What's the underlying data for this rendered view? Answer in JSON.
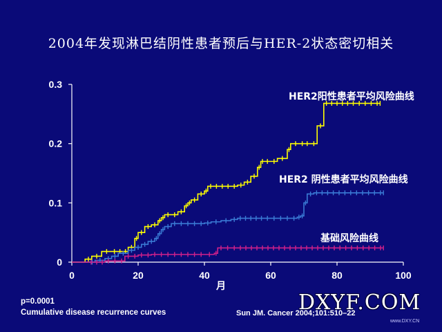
{
  "slide": {
    "title": "2004年发现淋巴结阴性患者预后与HER-2状态密切相关",
    "p_value": "p=0.0001",
    "caption": "Cumulative disease recurrence curves",
    "citation": "Sun JM. Cancer 2004;101:510–22",
    "watermark": "DXYF.COM",
    "watermark_sub": "www.DXY.CN"
  },
  "colors": {
    "background": "#0a0a78",
    "axis": "#ffffff",
    "yellow": "#ffff00",
    "blue": "#3a7bd5",
    "magenta": "#d0208a"
  },
  "chart_data": {
    "type": "line",
    "title": "",
    "xlabel": "月",
    "ylabel": "",
    "xlim": [
      0,
      100
    ],
    "ylim": [
      0,
      0.3
    ],
    "x_ticks": [
      0,
      20,
      40,
      60,
      80,
      100
    ],
    "y_ticks": [
      0,
      0.1,
      0.2,
      0.3
    ],
    "x_tick_labels": [
      "0",
      "20",
      "40",
      "60",
      "80",
      "100"
    ],
    "y_tick_labels": [
      "0",
      "0.1",
      "0.2",
      "0.3"
    ],
    "grid": false,
    "step": true,
    "series": [
      {
        "name": "HER2阳性患者平均风险曲线",
        "color": "#ffff00",
        "x": [
          0,
          4,
          6,
          9,
          12,
          17,
          19,
          20,
          22,
          24,
          26,
          27,
          28,
          30,
          32,
          34,
          35,
          36,
          38,
          40,
          41,
          48,
          50,
          52,
          54,
          56,
          57,
          58,
          62,
          65,
          66,
          69,
          70,
          72,
          74,
          76,
          84,
          93
        ],
        "y": [
          0,
          0.005,
          0.01,
          0.018,
          0.018,
          0.025,
          0.04,
          0.05,
          0.06,
          0.063,
          0.07,
          0.075,
          0.08,
          0.08,
          0.085,
          0.095,
          0.1,
          0.105,
          0.115,
          0.12,
          0.128,
          0.128,
          0.13,
          0.135,
          0.145,
          0.16,
          0.17,
          0.17,
          0.175,
          0.19,
          0.2,
          0.2,
          0.2,
          0.2,
          0.23,
          0.268,
          0.268,
          0.268
        ]
      },
      {
        "name": "HER2 阴性患者平均风险曲线",
        "color": "#3a7bd5",
        "x": [
          0,
          7,
          10,
          12,
          14,
          17,
          19,
          21,
          23,
          25,
          26,
          27,
          28,
          30,
          36,
          40,
          42,
          45,
          48,
          50,
          58,
          62,
          66,
          68,
          69,
          70,
          71,
          73,
          78,
          85,
          94
        ],
        "y": [
          0,
          0.003,
          0.006,
          0.01,
          0.015,
          0.02,
          0.025,
          0.03,
          0.035,
          0.04,
          0.048,
          0.055,
          0.06,
          0.065,
          0.065,
          0.066,
          0.068,
          0.07,
          0.072,
          0.074,
          0.074,
          0.074,
          0.074,
          0.076,
          0.078,
          0.1,
          0.115,
          0.117,
          0.117,
          0.117,
          0.117
        ]
      },
      {
        "name": "基础风险曲线",
        "color": "#d0208a",
        "x": [
          0,
          10,
          16,
          20,
          24,
          30,
          36,
          40,
          43,
          44,
          50,
          60,
          70,
          80,
          94
        ],
        "y": [
          0,
          0.002,
          0.01,
          0.012,
          0.013,
          0.013,
          0.013,
          0.013,
          0.015,
          0.024,
          0.024,
          0.024,
          0.024,
          0.024,
          0.024
        ]
      }
    ]
  }
}
